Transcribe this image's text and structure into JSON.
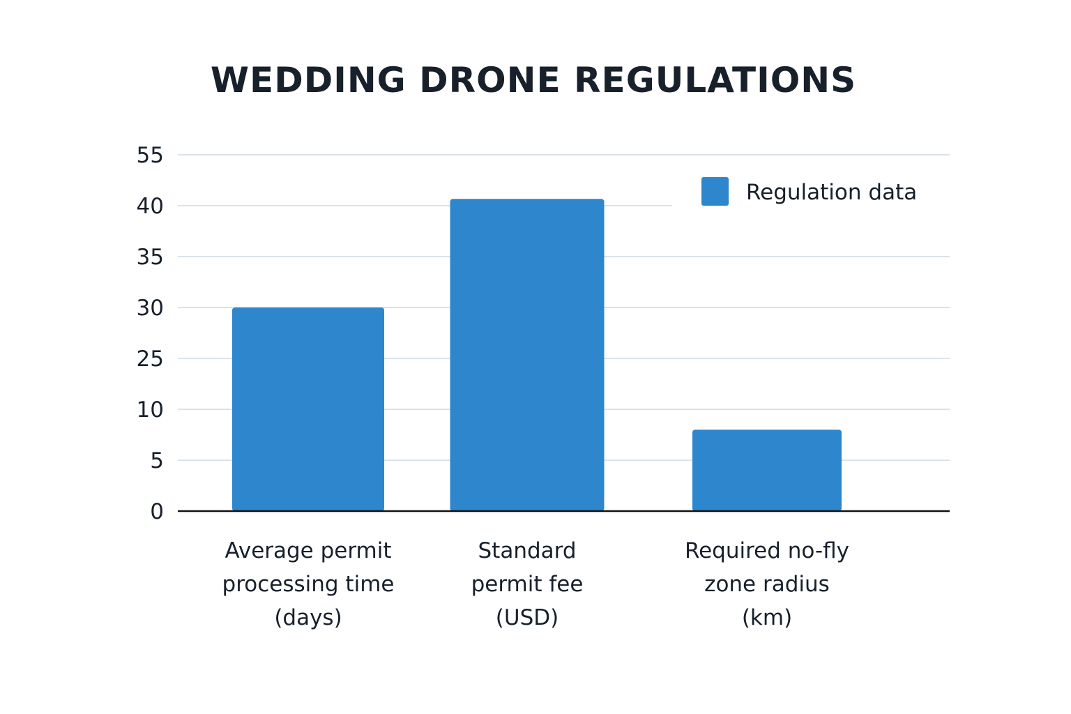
{
  "chart_data": {
    "type": "bar",
    "title": "WEDDING DRONE REGULATIONS",
    "xlabel": "",
    "ylabel": "",
    "y_ticks": [
      "0",
      "5",
      "10",
      "25",
      "30",
      "35",
      "40",
      "55"
    ],
    "categories": [
      [
        "Average permit",
        "processing time",
        "(days)"
      ],
      [
        "Standard",
        "permit fee",
        "(USD)"
      ],
      [
        "Required no-fly",
        "zone radius",
        "(km)"
      ]
    ],
    "series": [
      {
        "name": "Regulation data",
        "color": "#2e86cd",
        "values": [
          30,
          42,
          8
        ]
      }
    ],
    "grid": true,
    "legend_position": "top-right"
  }
}
